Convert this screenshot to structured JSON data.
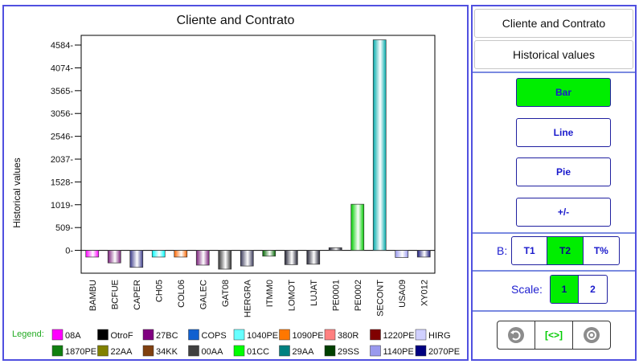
{
  "chart_data": {
    "type": "bar",
    "title": "Cliente and Contrato",
    "xlabel": "",
    "ylabel": "Historical values",
    "ylim": [
      -510,
      4800
    ],
    "yticks": [
      0,
      509,
      1019,
      1528,
      2037,
      2546,
      3056,
      3565,
      4074,
      4584
    ],
    "categories": [
      "BAMBU",
      "BCFUE",
      "CAPER",
      "CH05",
      "COL06",
      "GALEC",
      "GAT08",
      "HERGRA",
      "ITMM0",
      "LOMOT",
      "LUJAT",
      "PE0001",
      "PE0002",
      "SECONT",
      "USA09",
      "XY012"
    ],
    "values": [
      -150,
      -280,
      -380,
      -150,
      -150,
      -330,
      -420,
      -350,
      -130,
      -320,
      -310,
      60,
      1030,
      4700,
      -160,
      -150
    ],
    "bar_colors": [
      "#ff00ff",
      "#7a1f7a",
      "#3a3a8a",
      "#00ffff",
      "#ff6600",
      "#7a1f7a",
      "#333333",
      "#3a3a5a",
      "#006600",
      "#222233",
      "#222233",
      "#222233",
      "#00cc00",
      "#00aaaa",
      "#9999ee",
      "#1a1a7a"
    ],
    "legend_placement": "bottom",
    "grid": false
  },
  "legend": {
    "label": "Legend:",
    "rows": [
      [
        {
          "name": "08A",
          "color": "#ff00ff"
        },
        {
          "name": "OtroF",
          "color": "#000000"
        },
        {
          "name": "27BC",
          "color": "#800080"
        },
        {
          "name": "COPS",
          "color": "#1060d0"
        },
        {
          "name": "1040PE",
          "color": "#66ffff"
        },
        {
          "name": "1090PE",
          "color": "#ff7700"
        },
        {
          "name": "380R",
          "color": "#ff8080"
        },
        {
          "name": "1220PE",
          "color": "#800000"
        },
        {
          "name": "HIRG",
          "color": "#d0d0ff"
        }
      ],
      [
        {
          "name": "1870PE",
          "color": "#108010"
        },
        {
          "name": "22AA",
          "color": "#808000"
        },
        {
          "name": "34KK",
          "color": "#804010"
        },
        {
          "name": "00AA",
          "color": "#404040"
        },
        {
          "name": "01CC",
          "color": "#00ff00"
        },
        {
          "name": "29AA",
          "color": "#008080"
        },
        {
          "name": "29SS",
          "color": "#004000"
        },
        {
          "name": "1140PE",
          "color": "#9999ee"
        },
        {
          "name": "2070PE",
          "color": "#000080"
        }
      ]
    ]
  },
  "side": {
    "title1": "Cliente and Contrato",
    "title2": "Historical values",
    "types": [
      {
        "label": "Bar",
        "active": true
      },
      {
        "label": "Line",
        "active": false
      },
      {
        "label": "Pie",
        "active": false
      },
      {
        "label": "+/-",
        "active": false
      }
    ],
    "b_label": "B:",
    "b_options": [
      {
        "label": "T1",
        "active": false
      },
      {
        "label": "T2",
        "active": true
      },
      {
        "label": "T%",
        "active": false
      }
    ],
    "scale_label": "Scale:",
    "scale_options": [
      {
        "label": "1",
        "active": true
      },
      {
        "label": "2",
        "active": false
      }
    ],
    "fit_label": "[<>]"
  },
  "colors": {
    "accent": "#00ee00",
    "border": "#5050e0",
    "text_blue": "#1a1acc"
  }
}
